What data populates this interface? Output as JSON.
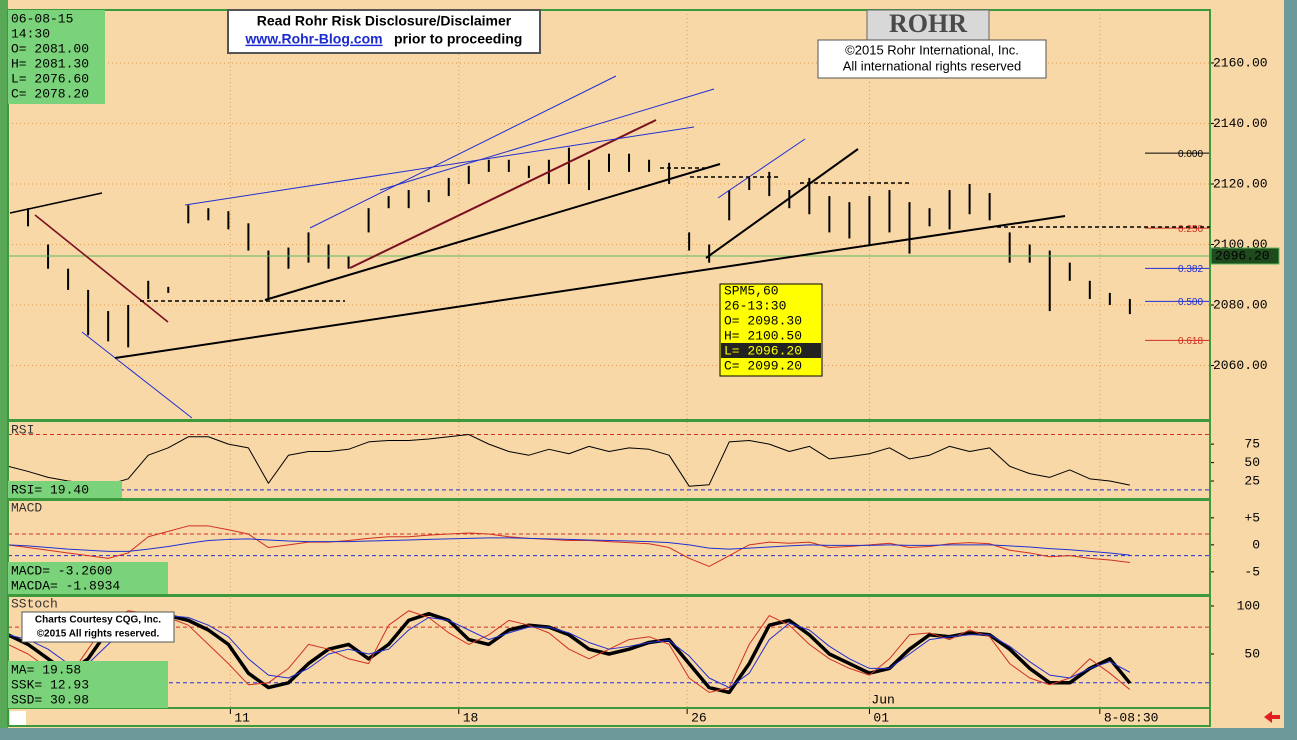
{
  "chart_data": [
    {
      "type": "ohlc",
      "color": "#000000",
      "high": [
        2112,
        2112,
        2100,
        2092,
        2085,
        2078,
        2080,
        2088,
        2086,
        2113,
        2112,
        2111,
        2107,
        2098,
        2099,
        2104,
        2100,
        2096,
        2112,
        2116,
        2118,
        2118,
        2122,
        2126,
        2128,
        2128,
        2126,
        2128,
        2132,
        2128,
        2130,
        2130,
        2128,
        2127,
        2104,
        2100,
        2118,
        2122,
        2124,
        2118,
        2122,
        2116,
        2114,
        2116,
        2118,
        2114,
        2112,
        2118,
        2120,
        2117,
        2104,
        2100,
        2098,
        2094,
        2088,
        2084,
        2082
      ],
      "low": [
        2110,
        2106,
        2092,
        2085,
        2070,
        2068,
        2066,
        2082,
        2084,
        2107,
        2108,
        2105,
        2098,
        2082,
        2092,
        2094,
        2092,
        2092,
        2104,
        2112,
        2112,
        2114,
        2116,
        2120,
        2124,
        2124,
        2122,
        2120,
        2120,
        2118,
        2124,
        2124,
        2124,
        2120,
        2098,
        2094,
        2108,
        2118,
        2116,
        2112,
        2110,
        2104,
        2102,
        2100,
        2104,
        2097,
        2106,
        2105,
        2110,
        2108,
        2094,
        2094,
        2078,
        2088,
        2082,
        2080,
        2077
      ],
      "ylim": [
        2042,
        2177.5
      ],
      "yticks": [
        {
          "value": 2060,
          "label": "2060.00"
        },
        {
          "value": 2080,
          "label": "2080.00"
        },
        {
          "value": 2100,
          "label": "2100.00"
        },
        {
          "value": 2120,
          "label": "2120.00"
        },
        {
          "value": 2140,
          "label": "2140.00"
        },
        {
          "value": 2160,
          "label": "2160.00"
        }
      ],
      "grid": true,
      "last_price": {
        "value": 2096.2,
        "label": "2096.20",
        "color": "#5cb85c"
      },
      "fib_levels": [
        {
          "value": 2130.2,
          "label": "0.000",
          "color": "#000000"
        },
        {
          "value": 2105.4,
          "label": "0.250",
          "color": "#d03020"
        },
        {
          "value": 2092.1,
          "label": "0.382",
          "color": "#2030d0"
        },
        {
          "value": 2081.2,
          "label": "0.500",
          "color": "#2030d0"
        },
        {
          "value": 2068.3,
          "label": "0.618",
          "color": "#d03020"
        }
      ],
      "readout": [
        "06-08-15",
        "14:30",
        "O= 2081.00",
        "H= 2081.30",
        "L= 2076.60",
        "C= 2078.20"
      ],
      "tooltip": [
        "SPM5,60",
        "26-13:30",
        "O=  2098.30",
        "H=  2100.50",
        "L=  2096.20",
        "C=  2099.20"
      ]
    },
    {
      "type": "line",
      "title": "RSI",
      "ylim": [
        2,
        105
      ],
      "yticks": [
        25,
        50,
        75
      ],
      "ref_lines": [
        {
          "value": 88,
          "color": "#d03020"
        },
        {
          "value": 13,
          "color": "#2030d0"
        }
      ],
      "series": [
        {
          "color": "#000000",
          "values": [
            45,
            38,
            30,
            25,
            22,
            20,
            28,
            60,
            70,
            85,
            85,
            75,
            70,
            22,
            60,
            65,
            65,
            68,
            78,
            80,
            80,
            82,
            85,
            88,
            75,
            65,
            60,
            68,
            62,
            72,
            65,
            70,
            68,
            60,
            18,
            20,
            78,
            80,
            75,
            65,
            72,
            55,
            58,
            62,
            70,
            55,
            60,
            72,
            65,
            70,
            45,
            35,
            30,
            40,
            28,
            25,
            19.4
          ]
        }
      ],
      "readout": [
        "RSI=    19.40"
      ]
    },
    {
      "type": "line",
      "title": "MACD",
      "ylim": [
        -9.1,
        8.3
      ],
      "yticks": [
        {
          "value": 5,
          "label": "+5"
        },
        0,
        -5
      ],
      "ref_lines": [
        {
          "value": 2,
          "color": "#d03020"
        },
        {
          "value": -2,
          "color": "#2030d0"
        }
      ],
      "series": [
        {
          "color": "#d03020",
          "values": [
            0,
            -0.5,
            -1,
            -1.5,
            -2,
            -2.5,
            -1.5,
            1.5,
            2.5,
            3.5,
            3.5,
            2.8,
            2,
            -0.5,
            0,
            0.5,
            0.5,
            0.8,
            1.2,
            1.5,
            1.5,
            1.8,
            2,
            2.2,
            2,
            1.5,
            1.2,
            1,
            0.8,
            0.8,
            0.6,
            0.4,
            0.2,
            -0.5,
            -2.5,
            -4,
            -2,
            0,
            0.5,
            0.3,
            0.5,
            -0.5,
            -0.3,
            0,
            0.3,
            -0.5,
            -0.3,
            0.2,
            0.4,
            0.2,
            -1,
            -1.5,
            -2.2,
            -2,
            -2.5,
            -2.8,
            -3.26
          ]
        },
        {
          "color": "#2030d0",
          "values": [
            0,
            -0.2,
            -0.5,
            -0.8,
            -1,
            -1.2,
            -1.2,
            -0.8,
            -0.3,
            0.3,
            0.8,
            1,
            1.1,
            0.9,
            0.7,
            0.6,
            0.6,
            0.6,
            0.7,
            0.8,
            0.9,
            1,
            1.1,
            1.2,
            1.3,
            1.3,
            1.2,
            1.1,
            1,
            0.9,
            0.8,
            0.7,
            0.6,
            0.4,
            0,
            -0.6,
            -0.8,
            -0.6,
            -0.4,
            -0.2,
            0,
            -0.1,
            -0.1,
            -0.1,
            0,
            -0.1,
            -0.1,
            0,
            0,
            0,
            -0.2,
            -0.4,
            -0.7,
            -0.9,
            -1.2,
            -1.5,
            -1.8934
          ]
        }
      ],
      "readout": [
        "MACD=    -3.2600",
        "MACDA=   -1.8934"
      ]
    },
    {
      "type": "line",
      "title": "SStoch",
      "ylim": [
        -6.25,
        110.4
      ],
      "yticks": [
        50,
        100
      ],
      "ref_lines": [
        {
          "value": 78,
          "color": "#d03020"
        },
        {
          "value": 20,
          "color": "#2030d0"
        }
      ],
      "series": [
        {
          "color": "#000000",
          "width": 3.5,
          "values": [
            70,
            60,
            45,
            30,
            45,
            75,
            88,
            92,
            90,
            85,
            75,
            60,
            30,
            15,
            20,
            40,
            55,
            60,
            45,
            60,
            85,
            92,
            85,
            65,
            60,
            75,
            80,
            78,
            70,
            55,
            50,
            55,
            62,
            65,
            40,
            15,
            10,
            40,
            80,
            85,
            70,
            50,
            40,
            30,
            35,
            55,
            70,
            68,
            72,
            70,
            55,
            35,
            20,
            20,
            35,
            45,
            19.58
          ]
        },
        {
          "color": "#d03020",
          "width": 1,
          "values": [
            60,
            50,
            35,
            25,
            55,
            85,
            95,
            92,
            88,
            80,
            60,
            40,
            18,
            20,
            35,
            60,
            55,
            45,
            40,
            80,
            95,
            88,
            72,
            60,
            70,
            85,
            80,
            72,
            55,
            45,
            55,
            65,
            68,
            60,
            25,
            10,
            15,
            60,
            90,
            80,
            60,
            45,
            35,
            28,
            45,
            70,
            72,
            65,
            75,
            68,
            40,
            25,
            18,
            25,
            45,
            30,
            12.93
          ]
        },
        {
          "color": "#2030d0",
          "width": 1,
          "values": [
            70,
            65,
            55,
            40,
            40,
            60,
            80,
            90,
            90,
            88,
            80,
            68,
            45,
            28,
            25,
            35,
            50,
            55,
            50,
            55,
            75,
            88,
            85,
            75,
            65,
            72,
            78,
            78,
            72,
            62,
            55,
            58,
            62,
            64,
            48,
            25,
            15,
            30,
            65,
            82,
            75,
            58,
            45,
            35,
            35,
            50,
            65,
            68,
            70,
            70,
            58,
            42,
            28,
            25,
            35,
            42,
            30.98
          ]
        }
      ],
      "readout": [
        "MA=      19.58",
        "SSK=     12.93",
        "SSD=     30.98"
      ]
    }
  ],
  "x_axis": {
    "xlim": [
      0,
      60
    ],
    "xticks": [
      {
        "value": 11.1,
        "label": "11"
      },
      {
        "value": 22.5,
        "label": "18"
      },
      {
        "value": 33.9,
        "label": "26"
      },
      {
        "value": 43,
        "label": "01"
      },
      {
        "value": 54.5,
        "label": "8-08:30"
      }
    ],
    "month": "Jun"
  },
  "notices": {
    "disclaimer": "Read Rohr Risk Disclosure/Disclaimer",
    "link": "www.Rohr-Blog.com",
    "proceed": "prior to proceeding",
    "logo": "ROHR",
    "copyright": "©2015 Rohr International, Inc.",
    "rights": "All international rights reserved",
    "courtesy": "Charts Courtesy CQG, Inc.",
    "courtesy_rights": "©2015 All rights reserved."
  }
}
